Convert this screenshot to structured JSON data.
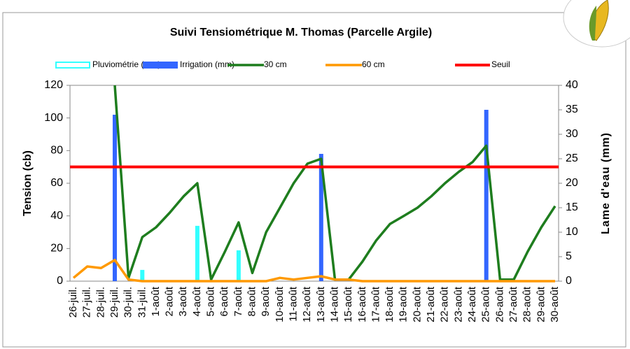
{
  "chart_data": {
    "type": "bar-line",
    "title": "Suivi Tensiométrique M. Thomas (Parcelle Argile)",
    "ylabel": "Tension (cb)",
    "y2label": "Lame d'eau (mm)",
    "categories": [
      "26-juil.",
      "27-juil.",
      "28-juil.",
      "29-juil.",
      "30-juil.",
      "31-juil.",
      "1-août",
      "2-août",
      "3-août",
      "4-août",
      "5-août",
      "6-août",
      "7-août",
      "8-août",
      "9-août",
      "10-août",
      "11-août",
      "12-août",
      "13-août",
      "14-août",
      "15-août",
      "16-août",
      "17-août",
      "18-août",
      "19-août",
      "20-août",
      "21-août",
      "22-août",
      "23-août",
      "24-août",
      "25-août",
      "26-août",
      "27-août",
      "28-août",
      "29-août",
      "30-août"
    ],
    "series": [
      {
        "name": "Pluviométrie (mm)",
        "kind": "bar",
        "axis": "y2",
        "color": "#33ffff",
        "values": [
          null,
          null,
          null,
          null,
          null,
          2.3,
          null,
          null,
          null,
          11.3,
          null,
          null,
          6.3,
          null,
          null,
          null,
          null,
          null,
          null,
          null,
          null,
          null,
          null,
          null,
          null,
          null,
          null,
          null,
          null,
          null,
          null,
          null,
          null,
          null,
          null,
          null
        ]
      },
      {
        "name": "Irrigation (mm)",
        "kind": "bar",
        "axis": "y2",
        "color": "#3366ff",
        "values": [
          null,
          null,
          null,
          34,
          null,
          null,
          null,
          null,
          null,
          null,
          null,
          null,
          null,
          null,
          null,
          null,
          null,
          null,
          26,
          null,
          null,
          null,
          null,
          null,
          null,
          null,
          null,
          null,
          null,
          null,
          35,
          null,
          null,
          null,
          null,
          null
        ]
      },
      {
        "name": "30 cm",
        "kind": "line",
        "color": "#1e7d1e",
        "values": [
          null,
          null,
          null,
          120,
          2,
          27,
          33,
          42,
          52,
          60,
          1,
          18,
          36,
          5,
          30,
          45,
          60,
          72,
          75,
          1,
          1,
          12,
          25,
          35,
          40,
          45,
          52,
          60,
          67,
          73,
          83,
          1,
          1,
          18,
          33,
          46
        ]
      },
      {
        "name": "60 cm",
        "kind": "line",
        "color": "#ff9900",
        "values": [
          2,
          9,
          8,
          13,
          1,
          0,
          0,
          0,
          0,
          0,
          0,
          0,
          0,
          0,
          0,
          2,
          1,
          2,
          3,
          1,
          1,
          0,
          0,
          0,
          0,
          0,
          0,
          0,
          0,
          0,
          0,
          0,
          0,
          0,
          0,
          0
        ]
      }
    ],
    "threshold": {
      "name": "Seuil",
      "value": 70,
      "color": "#ff0000"
    },
    "ylim": [
      0,
      120
    ],
    "yticks": [
      0,
      20,
      40,
      60,
      80,
      100,
      120
    ],
    "y2lim": [
      0,
      40
    ],
    "y2ticks": [
      0,
      5,
      10,
      15,
      20,
      25,
      30,
      35,
      40
    ]
  }
}
